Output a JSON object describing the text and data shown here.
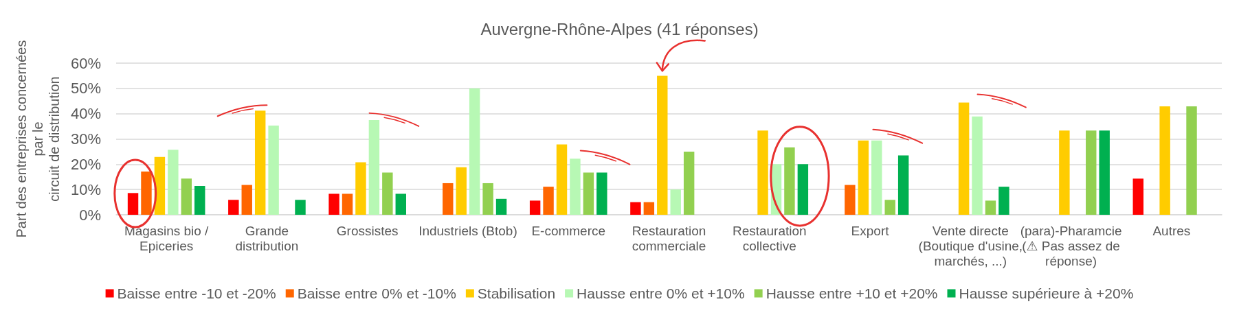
{
  "chart_data": {
    "type": "bar",
    "title": "Auvergne-Rhône-Alpes (41 réponses)",
    "ylabel": "Part des entreprises concernées\npar le\ncircuit de distribution",
    "categories": [
      "Magasins bio /\nEpiceries",
      "Grande\ndistribution",
      "Grossistes",
      "Industriels (Btob)",
      "E-commerce",
      "Restauration\ncommerciale",
      "Restauration\ncollective",
      "Export",
      "Vente directe\n(Boutique d'usine,\nmarchés, ...)",
      "(para)-Pharamcie\n(⚠ Pas assez de\nréponse)",
      "Autres"
    ],
    "series": [
      {
        "name": "Baisse entre -10 et -20%",
        "color": "#ff0000",
        "values": [
          8.6,
          5.9,
          8.3,
          null,
          5.6,
          5,
          null,
          null,
          null,
          null,
          14.3
        ]
      },
      {
        "name": "Baisse entre 0% et -10%",
        "color": "#ff6600",
        "values": [
          17.1,
          11.8,
          8.3,
          12.5,
          11.1,
          5,
          null,
          11.8,
          null,
          null,
          null
        ]
      },
      {
        "name": "Stabilisation",
        "color": "#ffcc00",
        "values": [
          22.9,
          41.2,
          20.8,
          18.8,
          27.8,
          55,
          33.3,
          29.4,
          44.4,
          33.3,
          42.9
        ]
      },
      {
        "name": "Hausse entre 0% et +10%",
        "color": "#b7f8b4",
        "values": [
          25.7,
          35.3,
          37.5,
          50,
          22.2,
          10,
          20,
          29.4,
          38.9,
          null,
          null
        ]
      },
      {
        "name": "Hausse entre +10 et +20%",
        "color": "#92d050",
        "values": [
          14.3,
          null,
          16.7,
          12.5,
          16.7,
          25,
          26.7,
          5.9,
          5.6,
          33.3,
          42.9
        ]
      },
      {
        "name": "Hausse supérieure à +20%",
        "color": "#00b050",
        "values": [
          11.4,
          5.9,
          8.3,
          6.3,
          16.7,
          null,
          20,
          23.5,
          11.1,
          33.3,
          null
        ]
      }
    ],
    "ylim": [
      0,
      60
    ],
    "yticks": [
      {
        "value": 0,
        "label": "0%"
      },
      {
        "value": 10,
        "label": "10%"
      },
      {
        "value": 20,
        "label": "20%"
      },
      {
        "value": 30,
        "label": "30%"
      },
      {
        "value": 40,
        "label": "40%"
      },
      {
        "value": 50,
        "label": "50%"
      },
      {
        "value": 60,
        "label": "60%"
      }
    ],
    "grid": "y",
    "legend": "bottom"
  }
}
